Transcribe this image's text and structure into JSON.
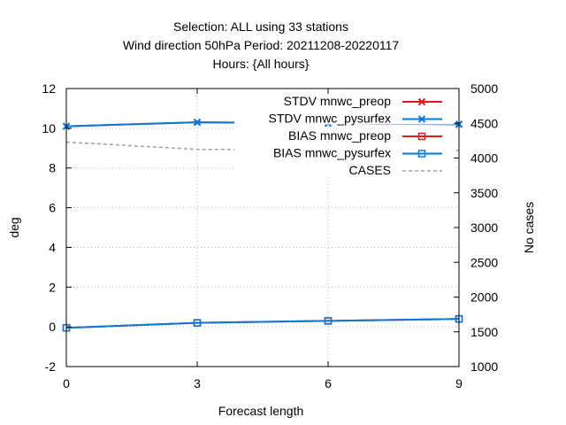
{
  "chart_data": {
    "type": "line",
    "title_lines": [
      "Selection: ALL using    33 stations",
      "Wind direction 50hPa   Period: 20211208-20220117",
      "Hours: {All hours}"
    ],
    "xlabel": "Forecast length",
    "ylabel": "deg",
    "y2label": "No cases",
    "x_ticks": [
      0,
      3,
      6,
      9
    ],
    "y_ticks": [
      -2,
      0,
      2,
      4,
      6,
      8,
      10,
      12
    ],
    "y2_ticks": [
      1000,
      1500,
      2000,
      2500,
      3000,
      3500,
      4000,
      4500,
      5000
    ],
    "xlim": [
      0,
      9
    ],
    "ylim": [
      -2,
      12
    ],
    "y2lim": [
      1000,
      5000
    ],
    "grid": true,
    "legend_position": "top-right",
    "series": [
      {
        "name": "STDV mnwc_preop",
        "axis": "y",
        "color": "#e41a1c",
        "marker": "x",
        "x": [
          0,
          3,
          6,
          9
        ],
        "y": [
          10.1,
          10.3,
          10.25,
          10.2
        ]
      },
      {
        "name": "STDV mnwc_pysurfex",
        "axis": "y",
        "color": "#0a7ad8",
        "marker": "x",
        "x": [
          0,
          3,
          6,
          9
        ],
        "y": [
          10.1,
          10.3,
          10.25,
          10.2
        ]
      },
      {
        "name": "BIAS mnwc_preop",
        "axis": "y",
        "color": "#e41a1c",
        "marker": "square",
        "x": [
          0,
          3,
          6,
          9
        ],
        "y": [
          -0.05,
          0.2,
          0.3,
          0.4
        ]
      },
      {
        "name": "BIAS mnwc_pysurfex",
        "axis": "y",
        "color": "#0a7ad8",
        "marker": "square",
        "x": [
          0,
          3,
          6,
          9
        ],
        "y": [
          -0.05,
          0.2,
          0.3,
          0.4
        ]
      },
      {
        "name": "CASES",
        "axis": "y2",
        "color": "#a0a0a0",
        "marker": "none",
        "dashed": true,
        "x": [
          0,
          3,
          6,
          9
        ],
        "y": [
          4230,
          4125,
          4125,
          4110
        ]
      }
    ]
  }
}
